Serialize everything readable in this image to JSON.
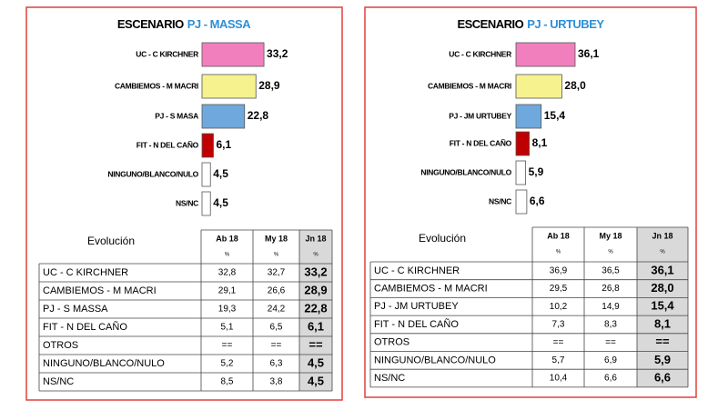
{
  "chart_data": [
    {
      "type": "bar",
      "title": [
        "ESCENARIO",
        "PJ - MASSA"
      ],
      "categories": [
        "UC - C KIRCHNER",
        "CAMBIEMOS - M MACRI",
        "PJ - S MASA",
        "FIT - N DEL CAÑO",
        "NINGUNO/BLANCO/NULO",
        "NS/NC"
      ],
      "values": [
        33.2,
        28.9,
        22.8,
        6.1,
        4.5,
        4.5
      ],
      "value_labels": [
        "33,2",
        "28,9",
        "22,8",
        "6,1",
        "4,5",
        "4,5"
      ],
      "colors": [
        "#f27fbd",
        "#f6f28e",
        "#6fa8dc",
        "#c00000",
        "#ffffff",
        "#ffffff"
      ]
    },
    {
      "type": "bar",
      "title": [
        "ESCENARIO",
        "PJ - URTUBEY"
      ],
      "categories": [
        "UC - C KIRCHNER",
        "CAMBIEMOS - M MACRI",
        "PJ - JM URTUBEY",
        "FIT - N DEL CAÑO",
        "NINGUNO/BLANCO/NULO",
        "NS/NC"
      ],
      "values": [
        36.1,
        28.0,
        15.4,
        8.1,
        5.9,
        6.6
      ],
      "value_labels": [
        "36,1",
        "28,0",
        "15,4",
        "8,1",
        "5,9",
        "6,6"
      ],
      "colors": [
        "#f27fbd",
        "#f6f28e",
        "#6fa8dc",
        "#c00000",
        "#ffffff",
        "#ffffff"
      ]
    }
  ],
  "tables": [
    {
      "header": "Evolución",
      "columns": [
        "Ab 18",
        "My 18",
        "Jn 18"
      ],
      "units": [
        "%",
        "%",
        "%"
      ],
      "rows": [
        [
          "UC - C KIRCHNER",
          "32,8",
          "32,7",
          "33,2"
        ],
        [
          "CAMBIEMOS - M MACRI",
          "29,1",
          "26,6",
          "28,9"
        ],
        [
          "PJ - S MASSA",
          "19,3",
          "24,2",
          "22,8"
        ],
        [
          "FIT - N DEL CAÑO",
          "5,1",
          "6,5",
          "6,1"
        ],
        [
          "OTROS",
          "==",
          "==",
          "=="
        ],
        [
          "NINGUNO/BLANCO/NULO",
          "5,2",
          "6,3",
          "4,5"
        ],
        [
          "NS/NC",
          "8,5",
          "3,8",
          "4,5"
        ]
      ]
    },
    {
      "header": "Evolución",
      "columns": [
        "Ab 18",
        "My 18",
        "Jn 18"
      ],
      "units": [
        "%",
        "%",
        "%"
      ],
      "rows": [
        [
          "UC - C KIRCHNER",
          "36,9",
          "36,5",
          "36,1"
        ],
        [
          "CAMBIEMOS - M MACRI",
          "29,5",
          "26,8",
          "28,0"
        ],
        [
          "PJ - JM URTUBEY",
          "10,2",
          "14,9",
          "15,4"
        ],
        [
          "FIT - N DEL CAÑO",
          "7,3",
          "8,3",
          "8,1"
        ],
        [
          "OTROS",
          "==",
          "==",
          "=="
        ],
        [
          "NINGUNO/BLANCO/NULO",
          "5,7",
          "6,9",
          "5,9"
        ],
        [
          "NS/NC",
          "10,4",
          "6,6",
          "6,6"
        ]
      ]
    }
  ]
}
